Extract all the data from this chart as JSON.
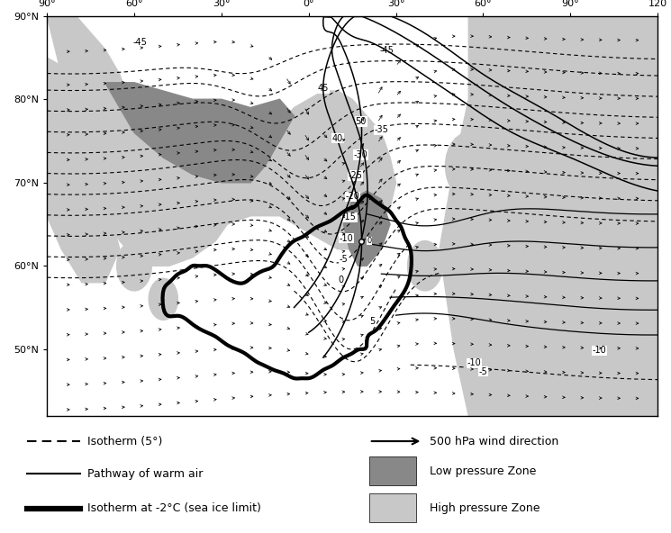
{
  "lon_min": -90,
  "lon_max": 120,
  "lat_min": 42,
  "lat_max": 90,
  "background_color": "#ffffff",
  "high_pressure_color": "#c8c8c8",
  "low_pressure_color": "#888888",
  "contour_lw": 0.8,
  "dashes": [
    4,
    3
  ],
  "legend_items_left": [
    {
      "label": "Isotherm (5°)",
      "type": "dashed"
    },
    {
      "label": "Pathway of warm air",
      "type": "solid"
    },
    {
      "label": "Isotherm at -2°C (sea ice limit)",
      "type": "thick"
    }
  ],
  "legend_items_right": [
    {
      "label": "500 hPa wind direction",
      "type": "arrow"
    },
    {
      "label": "Low pressure Zone",
      "type": "patch_dark"
    },
    {
      "label": "High pressure Zone",
      "type": "patch_light"
    }
  ]
}
